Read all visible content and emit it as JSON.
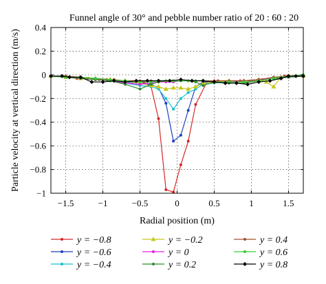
{
  "chart_data": {
    "type": "line",
    "title": "Funnel angle of 30° and pebble number ratio of 20 : 60 : 20",
    "xlabel": "Radial position (m)",
    "ylabel": "Particle velocity at vertical direction (m/s)",
    "xlim": [
      -1.7,
      1.7
    ],
    "ylim": [
      -1.0,
      0.4
    ],
    "x_ticks": [
      -1.5,
      -1,
      -0.5,
      0,
      0.5,
      1,
      1.5
    ],
    "x_tick_labels": [
      "−1.5",
      "−1",
      "−0.5",
      "0",
      "0.5",
      "1",
      "1.5"
    ],
    "y_ticks": [
      0.4,
      0.2,
      0,
      -0.2,
      -0.4,
      -0.6,
      -0.8,
      -1
    ],
    "y_tick_labels": [
      "0.4",
      "0.2",
      "0",
      "−0.2",
      "−0.4",
      "−0.6",
      "−0.8",
      "−1"
    ],
    "grid": true,
    "legend_position": "bottom",
    "series": [
      {
        "name": "y = −0.8",
        "color": "#d62728",
        "marker": "dot",
        "x": [
          -1.7,
          -1.55,
          -1.45,
          -1.35,
          -1.2,
          -1.05,
          -0.95,
          -0.85,
          -0.7,
          -0.55,
          -0.45,
          -0.35,
          -0.25,
          -0.15,
          -0.05,
          0.05,
          0.15,
          0.25,
          0.4,
          0.55,
          0.7,
          0.85,
          1.0,
          1.15,
          1.3,
          1.45,
          1.6,
          1.7
        ],
        "y": [
          -0.01,
          -0.01,
          -0.02,
          -0.03,
          -0.03,
          -0.04,
          -0.04,
          -0.04,
          -0.05,
          -0.05,
          -0.06,
          -0.1,
          -0.37,
          -0.97,
          -0.99,
          -0.76,
          -0.56,
          -0.25,
          -0.06,
          -0.05,
          -0.05,
          -0.05,
          -0.05,
          -0.04,
          -0.03,
          -0.01,
          -0.01,
          -0.01
        ]
      },
      {
        "name": "y = −0.6",
        "color": "#1f3fbf",
        "marker": "dot",
        "x": [
          -1.7,
          -1.5,
          -1.3,
          -1.1,
          -0.9,
          -0.7,
          -0.5,
          -0.35,
          -0.25,
          -0.15,
          -0.05,
          0.05,
          0.15,
          0.25,
          0.35,
          0.5,
          0.7,
          0.9,
          1.1,
          1.3,
          1.5,
          1.7
        ],
        "y": [
          -0.01,
          -0.02,
          -0.03,
          -0.04,
          -0.05,
          -0.06,
          -0.07,
          -0.08,
          -0.11,
          -0.24,
          -0.56,
          -0.51,
          -0.3,
          -0.1,
          -0.06,
          -0.06,
          -0.06,
          -0.05,
          -0.04,
          -0.03,
          -0.02,
          -0.01
        ]
      },
      {
        "name": "y = −0.4",
        "color": "#17becf",
        "marker": "dot",
        "x": [
          -1.7,
          -1.5,
          -1.3,
          -1.1,
          -0.9,
          -0.7,
          -0.5,
          -0.35,
          -0.25,
          -0.15,
          -0.05,
          0.05,
          0.15,
          0.25,
          0.35,
          0.5,
          0.7,
          0.9,
          1.1,
          1.3,
          1.5,
          1.7
        ],
        "y": [
          -0.01,
          -0.02,
          -0.03,
          -0.04,
          -0.05,
          -0.07,
          -0.09,
          -0.1,
          -0.12,
          -0.2,
          -0.29,
          -0.2,
          -0.15,
          -0.12,
          -0.08,
          -0.07,
          -0.06,
          -0.05,
          -0.04,
          -0.03,
          -0.02,
          -0.01
        ]
      },
      {
        "name": "y = −0.2",
        "color": "#c8c81e",
        "marker": "triangle",
        "x": [
          -1.7,
          -1.5,
          -1.3,
          -1.1,
          -0.9,
          -0.7,
          -0.5,
          -0.35,
          -0.25,
          -0.15,
          -0.05,
          0.05,
          0.15,
          0.25,
          0.35,
          0.5,
          0.7,
          0.9,
          1.1,
          1.2,
          1.3,
          1.4,
          1.5,
          1.7
        ],
        "y": [
          -0.01,
          -0.02,
          -0.03,
          -0.03,
          -0.04,
          -0.05,
          -0.07,
          -0.09,
          -0.1,
          -0.12,
          -0.11,
          -0.11,
          -0.12,
          -0.1,
          -0.07,
          -0.06,
          -0.05,
          -0.05,
          -0.04,
          -0.06,
          -0.1,
          -0.02,
          -0.01,
          -0.01
        ]
      },
      {
        "name": "y = 0",
        "color": "#e020e0",
        "marker": "dot",
        "x": [
          -1.7,
          -1.5,
          -1.3,
          -1.1,
          -0.9,
          -0.7,
          -0.5,
          -0.35,
          -0.25,
          -0.15,
          -0.05,
          0.05,
          0.15,
          0.25,
          0.35,
          0.5,
          0.7,
          0.9,
          1.1,
          1.3,
          1.5,
          1.7
        ],
        "y": [
          -0.01,
          -0.02,
          -0.03,
          -0.04,
          -0.05,
          -0.07,
          -0.08,
          -0.07,
          -0.06,
          -0.06,
          -0.06,
          -0.05,
          -0.05,
          -0.05,
          -0.05,
          -0.06,
          -0.06,
          -0.05,
          -0.04,
          -0.03,
          -0.02,
          -0.01
        ]
      },
      {
        "name": "y = 0.2",
        "color": "#2e8b2e",
        "marker": "dot",
        "x": [
          -1.7,
          -1.5,
          -1.3,
          -1.1,
          -0.9,
          -0.7,
          -0.5,
          -0.35,
          -0.25,
          -0.15,
          -0.05,
          0.05,
          0.15,
          0.25,
          0.35,
          0.5,
          0.7,
          0.9,
          1.1,
          1.3,
          1.5,
          1.7
        ],
        "y": [
          -0.01,
          -0.02,
          -0.03,
          -0.04,
          -0.05,
          -0.08,
          -0.12,
          -0.08,
          -0.06,
          -0.05,
          -0.05,
          -0.05,
          -0.05,
          -0.06,
          -0.09,
          -0.06,
          -0.07,
          -0.07,
          -0.05,
          -0.03,
          -0.02,
          -0.01
        ]
      },
      {
        "name": "y = 0.4",
        "color": "#a0522d",
        "marker": "dot",
        "x": [
          -1.7,
          -1.5,
          -1.3,
          -1.1,
          -0.9,
          -0.7,
          -0.5,
          -0.35,
          -0.25,
          -0.15,
          -0.05,
          0.05,
          0.15,
          0.25,
          0.35,
          0.5,
          0.7,
          0.9,
          1.1,
          1.3,
          1.5,
          1.7
        ],
        "y": [
          -0.01,
          -0.01,
          -0.02,
          -0.03,
          -0.04,
          -0.05,
          -0.05,
          -0.05,
          -0.05,
          -0.05,
          -0.05,
          -0.05,
          -0.05,
          -0.05,
          -0.05,
          -0.05,
          -0.05,
          -0.05,
          -0.04,
          -0.02,
          -0.01,
          0.0
        ]
      },
      {
        "name": "y = 0.6",
        "color": "#32cd32",
        "marker": "dot",
        "x": [
          -1.7,
          -1.5,
          -1.3,
          -1.1,
          -0.9,
          -0.7,
          -0.5,
          -0.35,
          -0.25,
          -0.15,
          -0.05,
          0.05,
          0.15,
          0.25,
          0.35,
          0.5,
          0.7,
          0.9,
          1.1,
          1.3,
          1.5,
          1.7
        ],
        "y": [
          -0.01,
          -0.02,
          -0.02,
          -0.03,
          -0.04,
          -0.05,
          -0.06,
          -0.06,
          -0.05,
          -0.05,
          -0.05,
          -0.05,
          -0.05,
          -0.05,
          -0.05,
          -0.06,
          -0.06,
          -0.06,
          -0.05,
          -0.03,
          -0.01,
          0.0
        ]
      },
      {
        "name": "y = 0.8",
        "color": "#000000",
        "marker": "diamond",
        "x": [
          -1.7,
          -1.55,
          -1.45,
          -1.3,
          -1.15,
          -1.0,
          -0.85,
          -0.7,
          -0.55,
          -0.4,
          -0.25,
          -0.1,
          0.05,
          0.2,
          0.35,
          0.5,
          0.65,
          0.8,
          0.95,
          1.1,
          1.25,
          1.4,
          1.5,
          1.6,
          1.7
        ],
        "y": [
          -0.01,
          -0.01,
          -0.02,
          -0.02,
          -0.06,
          -0.06,
          -0.05,
          -0.06,
          -0.05,
          -0.05,
          -0.05,
          -0.05,
          -0.04,
          -0.05,
          -0.05,
          -0.06,
          -0.07,
          -0.07,
          -0.08,
          -0.06,
          -0.05,
          -0.03,
          -0.01,
          -0.01,
          -0.01
        ]
      }
    ]
  }
}
